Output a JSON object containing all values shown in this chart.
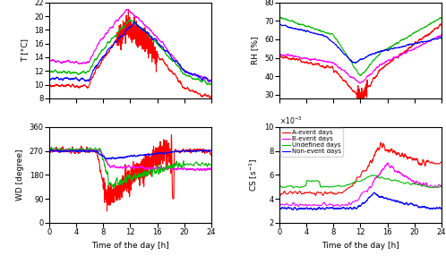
{
  "colors": {
    "A": "#ff0000",
    "B": "#ff00ff",
    "Undefined": "#00bb00",
    "Non": "#0000ff"
  },
  "legend_labels": [
    "A-event days",
    "B-event days",
    "Undefined days",
    "Non-event days"
  ],
  "T_ylim": [
    8,
    22
  ],
  "RH_ylim": [
    28,
    80
  ],
  "WD_ylim": [
    0,
    360
  ],
  "CS_ylim": [
    0.002,
    0.01
  ],
  "CS_yticks": [
    0.002,
    0.004,
    0.006,
    0.008,
    0.01
  ],
  "xlim": [
    0,
    24
  ],
  "xticks": [
    0,
    4,
    8,
    12,
    16,
    20,
    24
  ]
}
